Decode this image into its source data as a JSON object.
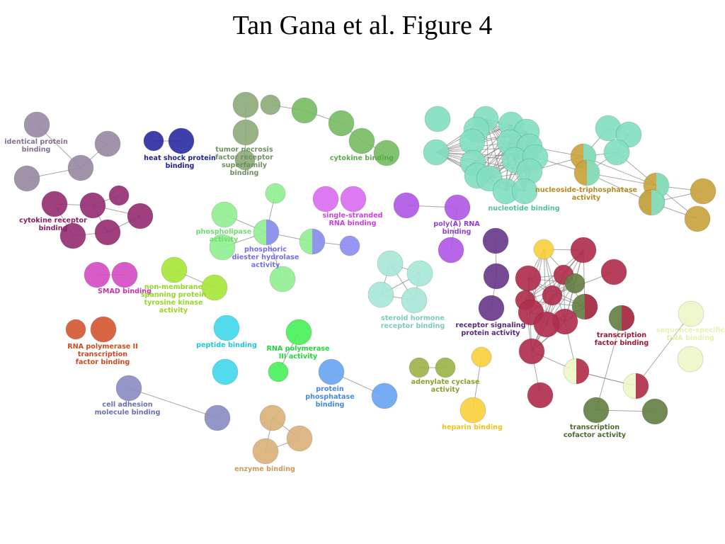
{
  "title": "Tan Gana et al. Figure 4",
  "clusters": [
    {
      "id": "identical",
      "color": "#9a8aa2",
      "lines": [
        "identical protein",
        "binding"
      ]
    },
    {
      "id": "hsp",
      "color": "#2e2fa3",
      "lines": [
        "heat shock protein",
        "binding"
      ]
    },
    {
      "id": "tnf",
      "color": "#8fac7a",
      "lines": [
        "tumor necrosis",
        "factor receptor",
        "superfamily",
        "binding"
      ]
    },
    {
      "id": "cytokine",
      "color": "#78bd66",
      "lines": [
        "cytokine binding"
      ]
    },
    {
      "id": "nucleotide",
      "color": "#83dfc3",
      "lines": [
        "nucleotide binding"
      ]
    },
    {
      "id": "ntpase",
      "color": "#c9a43e",
      "lines": [
        "nucleoside-triphosphatase",
        "activity"
      ]
    },
    {
      "id": "cytrec",
      "color": "#963072",
      "lines": [
        "cytokine receptor",
        "binding"
      ]
    },
    {
      "id": "phospholipase",
      "color": "#93ef93",
      "lines": [
        "phospholipase",
        "activity"
      ]
    },
    {
      "id": "phosphodiester",
      "color": "#8e8ef2",
      "lines": [
        "phosphoric",
        "diester hydrolase",
        "activity"
      ]
    },
    {
      "id": "ssrna",
      "color": "#db6ff0",
      "lines": [
        "single-stranded",
        "RNA binding"
      ]
    },
    {
      "id": "polya",
      "color": "#b05ae6",
      "lines": [
        "poly(A) RNA",
        "binding"
      ]
    },
    {
      "id": "smad",
      "color": "#d54fc4",
      "lines": [
        "SMAD binding"
      ]
    },
    {
      "id": "nonmem",
      "color": "#a8e83a",
      "lines": [
        "non-membrane",
        "spanning protein",
        "tyrosine kinase",
        "activity"
      ]
    },
    {
      "id": "steroid",
      "color": "#a8e8d8",
      "lines": [
        "steroid hormone",
        "receptor binding"
      ]
    },
    {
      "id": "receptor",
      "color": "#6a3a8c",
      "lines": [
        "receptor signaling",
        "protein activity"
      ]
    },
    {
      "id": "tf",
      "color": "#b0304e",
      "lines": [
        "transcription",
        "factor binding"
      ]
    },
    {
      "id": "seqspec",
      "color": "#eef8c8",
      "lines": [
        "sequence-specific",
        "DNA binding"
      ]
    },
    {
      "id": "rnapol2",
      "color": "#d65a34",
      "lines": [
        "RNA polymerase II",
        "transcription",
        "factor binding"
      ]
    },
    {
      "id": "peptide",
      "color": "#43d8ec",
      "lines": [
        "peptide binding"
      ]
    },
    {
      "id": "rnapol3",
      "color": "#4cf05c",
      "lines": [
        "RNA polymerase",
        "III activity"
      ]
    },
    {
      "id": "phosphatase",
      "color": "#6aa6f2",
      "lines": [
        "protein",
        "phosphatase",
        "binding"
      ]
    },
    {
      "id": "adenylate",
      "color": "#9db548",
      "lines": [
        "adenylate cyclase",
        "activity"
      ]
    },
    {
      "id": "heparin",
      "color": "#fad13e",
      "lines": [
        "heparin binding"
      ]
    },
    {
      "id": "cofactor",
      "color": "#667f45",
      "lines": [
        "transcription",
        "cofactor activity"
      ]
    },
    {
      "id": "adhesion",
      "color": "#8a8ec2",
      "lines": [
        "cell adhesion",
        "molecule binding"
      ]
    },
    {
      "id": "enzyme",
      "color": "#dcb27a",
      "lines": [
        "enzyme binding"
      ]
    }
  ]
}
